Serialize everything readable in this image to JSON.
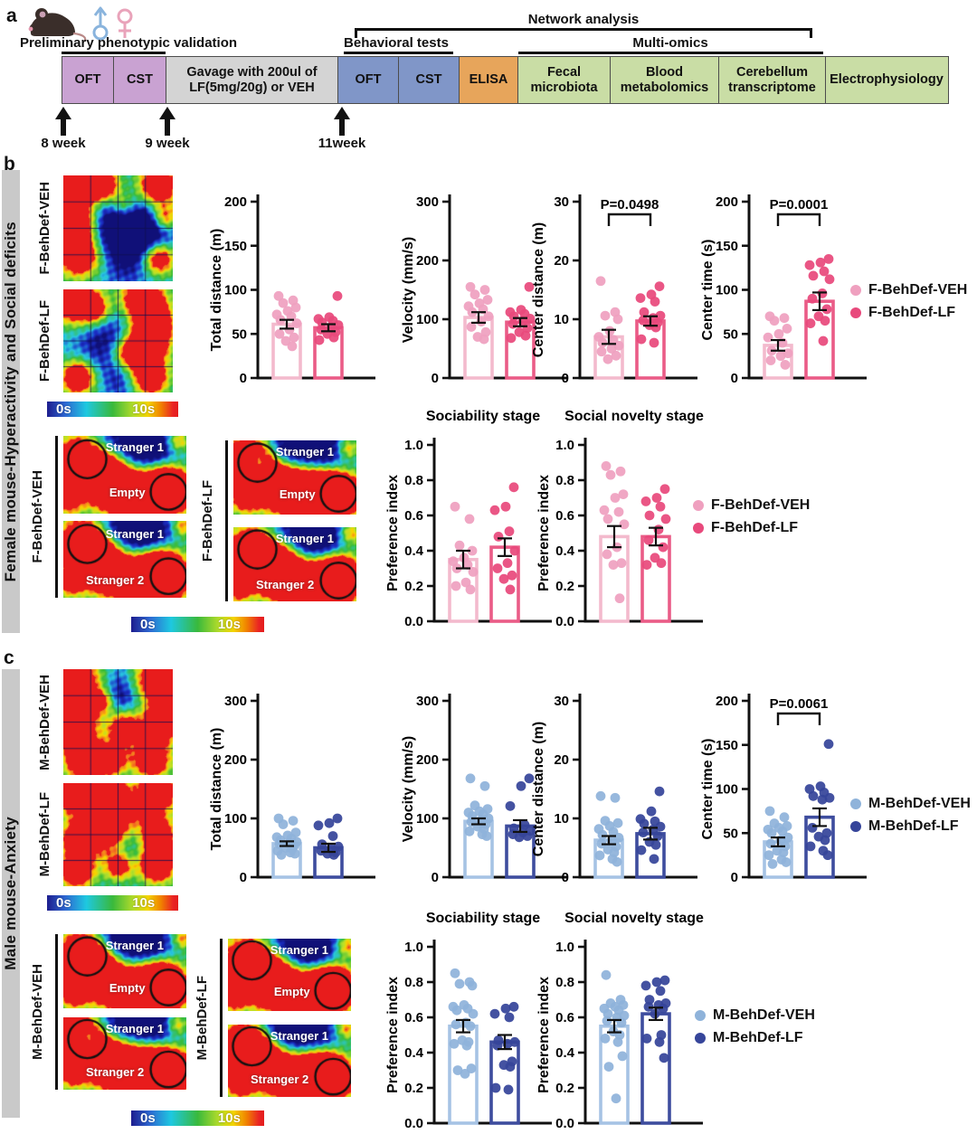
{
  "colors": {
    "f_veh": {
      "bar": "#f3bacd",
      "dot": "#efa0bf"
    },
    "f_lf": {
      "bar": "#ea5c87",
      "dot": "#e8497c"
    },
    "m_veh": {
      "bar": "#a6c3e4",
      "dot": "#8fb3da"
    },
    "m_lf": {
      "bar": "#3e4d9e",
      "dot": "#36459a"
    },
    "box_purple": "#c9a2d2",
    "box_gray": "#d4d4d4",
    "box_blue": "#8096c8",
    "box_orange": "#e7a55b",
    "box_green": "#c9dda5",
    "band_gray": "#c9c9c9"
  },
  "panel_a": {
    "label": "a",
    "male_symbol": "male",
    "female_symbol": "female",
    "brackets": {
      "preliminary": "Preliminary phenotypic validation",
      "behavioral": "Behavioral tests",
      "network": "Network analysis",
      "multiomics": "Multi-omics"
    },
    "boxes": {
      "oft1": "OFT",
      "cst1": "CST",
      "gavage": "Gavage with 200ul of LF(5mg/20g) or VEH",
      "oft2": "OFT",
      "cst2": "CST",
      "elisa": "ELISA",
      "fecal": "Fecal microbiota",
      "blood": "Blood metabolomics",
      "cereb": "Cerebellum transcriptome",
      "ephys": "Electrophysiology"
    },
    "timepoints": [
      "8 week",
      "9 week",
      "11week"
    ]
  },
  "panel_b": {
    "label": "b",
    "side_label": "Female mouse-Hyperactivity and Social deficits",
    "oft_maps": [
      {
        "label": "F-BehDef-VEH"
      },
      {
        "label": "F-BehDef-LF"
      }
    ],
    "scale": {
      "min": "0s",
      "max": "10s"
    },
    "social_groups": [
      {
        "label": "F-BehDef-VEH",
        "maps": [
          {
            "top": "Stranger 1",
            "bottom": "Empty"
          },
          {
            "top": "Stranger 1",
            "bottom": "Stranger 2"
          }
        ]
      },
      {
        "label": "F-BehDef-LF",
        "maps": [
          {
            "top": "Stranger 1",
            "bottom": "Empty"
          },
          {
            "top": "Stranger 1",
            "bottom": "Stranger 2"
          }
        ]
      }
    ],
    "legend": [
      {
        "label": "F-BehDef-VEH",
        "color": "f_veh"
      },
      {
        "label": "F-BehDef-LF",
        "color": "f_lf"
      }
    ]
  },
  "panel_c": {
    "label": "c",
    "side_label": "Male mouse-Anxiety",
    "oft_maps": [
      {
        "label": "M-BehDef-VEH"
      },
      {
        "label": "M-BehDef-LF"
      }
    ],
    "scale": {
      "min": "0s",
      "max": "10s"
    },
    "social_groups": [
      {
        "label": "M-BehDef-VEH",
        "maps": [
          {
            "top": "Stranger 1",
            "bottom": "Empty"
          },
          {
            "top": "Stranger 1",
            "bottom": "Stranger 2"
          }
        ]
      },
      {
        "label": "M-BehDef-LF",
        "maps": [
          {
            "top": "Stranger 1",
            "bottom": "Empty"
          },
          {
            "top": "Stranger 1",
            "bottom": "Stranger 2"
          }
        ]
      }
    ],
    "legend": [
      {
        "label": "M-BehDef-VEH",
        "color": "m_veh"
      },
      {
        "label": "M-BehDef-LF",
        "color": "m_lf"
      }
    ]
  },
  "chart_data": [
    {
      "id": "b_total",
      "type": "bar",
      "title": "",
      "ylabel": "Total distance (m)",
      "ylim": [
        0,
        200
      ],
      "yticks": [
        "0",
        "50",
        "100",
        "150",
        "200"
      ],
      "pvalue": null,
      "colors": [
        "f_veh",
        "f_lf"
      ],
      "series": [
        {
          "name": "F-BehDef-VEH",
          "mean": 61,
          "sem": 5,
          "points": [
            93,
            88,
            85,
            80,
            76,
            72,
            70,
            66,
            62,
            55,
            50,
            46,
            42,
            36
          ]
        },
        {
          "name": "F-BehDef-LF",
          "mean": 57,
          "sem": 4,
          "points": [
            93,
            69,
            67,
            65,
            63,
            60,
            58,
            55,
            52,
            50,
            46,
            43
          ]
        }
      ]
    },
    {
      "id": "b_vel",
      "type": "bar",
      "title": "",
      "ylabel": "Velocity (mm/s)",
      "ylim": [
        0,
        300
      ],
      "yticks": [
        "0",
        "100",
        "200",
        "300"
      ],
      "pvalue": null,
      "colors": [
        "f_veh",
        "f_lf"
      ],
      "series": [
        {
          "name": "F-BehDef-VEH",
          "mean": 103,
          "sem": 9,
          "points": [
            155,
            150,
            142,
            133,
            127,
            122,
            117,
            112,
            105,
            96,
            87,
            78,
            70,
            66
          ]
        },
        {
          "name": "F-BehDef-LF",
          "mean": 95,
          "sem": 7,
          "points": [
            155,
            116,
            112,
            109,
            105,
            101,
            97,
            92,
            85,
            78,
            72,
            68
          ]
        }
      ]
    },
    {
      "id": "b_cdist",
      "type": "bar",
      "title": "",
      "ylabel": "Center distance (m)",
      "ylim": [
        0,
        30
      ],
      "yticks": [
        "0",
        "10",
        "20",
        "30"
      ],
      "pvalue": "P=0.0498",
      "colors": [
        "f_veh",
        "f_lf"
      ],
      "series": [
        {
          "name": "F-BehDef-VEH",
          "mean": 7,
          "sem": 1.2,
          "points": [
            16.5,
            11.2,
            10.6,
            10,
            8,
            7,
            6.5,
            6,
            5.5,
            5,
            4.5,
            3.8,
            3.2
          ]
        },
        {
          "name": "F-BehDef-LF",
          "mean": 9.7,
          "sem": 0.8,
          "points": [
            15.6,
            14.2,
            13.6,
            13,
            11.2,
            10.6,
            10.2,
            9.8,
            9.4,
            9,
            8.6,
            6.6,
            6
          ]
        }
      ]
    },
    {
      "id": "b_ctime",
      "type": "bar",
      "title": "",
      "ylabel": "Center time (s)",
      "ylim": [
        0,
        200
      ],
      "yticks": [
        "0",
        "50",
        "100",
        "150",
        "200"
      ],
      "pvalue": "P=0.0001",
      "colors": [
        "f_veh",
        "f_lf"
      ],
      "series": [
        {
          "name": "F-BehDef-VEH",
          "mean": 37,
          "sem": 6,
          "points": [
            70,
            68,
            65,
            56,
            50,
            46,
            40,
            31,
            28,
            25,
            20,
            15
          ]
        },
        {
          "name": "F-BehDef-LF",
          "mean": 87,
          "sem": 10,
          "points": [
            135,
            131,
            128,
            121,
            116,
            112,
            96,
            90,
            78,
            70,
            65,
            62,
            42
          ]
        }
      ]
    },
    {
      "id": "b_soc",
      "type": "bar",
      "title": "Sociability stage",
      "ylabel": "Preference index",
      "ylim": [
        0,
        1
      ],
      "yticks": [
        "0.0",
        "0.2",
        "0.4",
        "0.6",
        "0.8",
        "1.0"
      ],
      "pvalue": null,
      "colors": [
        "f_veh",
        "f_lf"
      ],
      "series": [
        {
          "name": "F-BehDef-VEH",
          "mean": 0.35,
          "sem": 0.05,
          "points": [
            0.65,
            0.58,
            0.43,
            0.4,
            0.36,
            0.34,
            0.32,
            0.3,
            0.28,
            0.22,
            0.2,
            0.18
          ]
        },
        {
          "name": "F-BehDef-LF",
          "mean": 0.42,
          "sem": 0.05,
          "points": [
            0.76,
            0.65,
            0.63,
            0.51,
            0.48,
            0.4,
            0.33,
            0.3,
            0.26,
            0.24,
            0.18
          ]
        }
      ]
    },
    {
      "id": "b_nov",
      "type": "bar",
      "title": "Social novelty stage",
      "ylabel": "Preference index",
      "ylim": [
        0,
        1
      ],
      "yticks": [
        "0.0",
        "0.2",
        "0.4",
        "0.6",
        "0.8",
        "1.0"
      ],
      "pvalue": null,
      "colors": [
        "f_veh",
        "f_lf"
      ],
      "series": [
        {
          "name": "F-BehDef-VEH",
          "mean": 0.48,
          "sem": 0.06,
          "points": [
            0.88,
            0.85,
            0.83,
            0.72,
            0.7,
            0.63,
            0.62,
            0.58,
            0.55,
            0.42,
            0.38,
            0.33,
            0.32,
            0.13
          ]
        },
        {
          "name": "F-BehDef-LF",
          "mean": 0.48,
          "sem": 0.05,
          "points": [
            0.75,
            0.7,
            0.68,
            0.65,
            0.6,
            0.58,
            0.52,
            0.46,
            0.42,
            0.36,
            0.33,
            0.32
          ]
        }
      ]
    },
    {
      "id": "c_total",
      "type": "bar",
      "title": "",
      "ylabel": "Total distance (m)",
      "ylim": [
        0,
        300
      ],
      "yticks": [
        "0",
        "100",
        "200",
        "300"
      ],
      "pvalue": null,
      "colors": [
        "m_veh",
        "m_lf"
      ],
      "series": [
        {
          "name": "M-BehDef-VEH",
          "mean": 57,
          "sem": 4,
          "points": [
            100,
            96,
            90,
            76,
            71,
            68,
            66,
            63,
            60,
            58,
            56,
            53,
            50,
            48,
            45,
            42,
            40,
            38
          ]
        },
        {
          "name": "M-BehDef-LF",
          "mean": 50,
          "sem": 7,
          "points": [
            100,
            92,
            88,
            70,
            56,
            52,
            48,
            45,
            42,
            40,
            38
          ]
        }
      ]
    },
    {
      "id": "c_vel",
      "type": "bar",
      "title": "",
      "ylabel": "Velocity (mm/s)",
      "ylim": [
        0,
        300
      ],
      "yticks": [
        "0",
        "100",
        "200",
        "300"
      ],
      "pvalue": null,
      "colors": [
        "m_veh",
        "m_lf"
      ],
      "series": [
        {
          "name": "M-BehDef-VEH",
          "mean": 95,
          "sem": 5,
          "points": [
            168,
            155,
            122,
            116,
            112,
            110,
            107,
            104,
            100,
            97,
            94,
            90,
            86,
            82,
            78,
            73,
            70
          ]
        },
        {
          "name": "M-BehDef-LF",
          "mean": 87,
          "sem": 10,
          "points": [
            168,
            155,
            121,
            89,
            83,
            79,
            76,
            73,
            70,
            68
          ]
        }
      ]
    },
    {
      "id": "c_cdist",
      "type": "bar",
      "title": "",
      "ylabel": "Center distance (m)",
      "ylim": [
        0,
        30
      ],
      "yticks": [
        "0",
        "10",
        "20",
        "30"
      ],
      "pvalue": null,
      "colors": [
        "m_veh",
        "m_lf"
      ],
      "series": [
        {
          "name": "M-BehDef-VEH",
          "mean": 6.3,
          "sem": 0.7,
          "points": [
            13.8,
            13.5,
            9.6,
            9.2,
            8.7,
            8.2,
            7.7,
            7.2,
            6.7,
            6.2,
            5.7,
            5.2,
            4.7,
            4.2,
            3.7,
            3.1,
            2.6
          ]
        },
        {
          "name": "M-BehDef-LF",
          "mean": 7.4,
          "sem": 1.0,
          "points": [
            14.6,
            11.2,
            9.9,
            9.5,
            9.1,
            8.6,
            8.1,
            7.6,
            7,
            6,
            5.5,
            4.6,
            3.1
          ]
        }
      ]
    },
    {
      "id": "c_ctime",
      "type": "bar",
      "title": "",
      "ylabel": "Center time (s)",
      "ylim": [
        0,
        200
      ],
      "yticks": [
        "0",
        "50",
        "100",
        "150",
        "200"
      ],
      "pvalue": "P=0.0061",
      "colors": [
        "m_veh",
        "m_lf"
      ],
      "series": [
        {
          "name": "M-BehDef-VEH",
          "mean": 40,
          "sem": 5,
          "points": [
            75,
            68,
            61,
            58,
            56,
            54,
            52,
            50,
            45,
            42,
            38,
            35,
            30,
            28,
            25,
            20,
            17,
            15
          ]
        },
        {
          "name": "M-BehDef-LF",
          "mean": 68,
          "sem": 10,
          "points": [
            151,
            103,
            100,
            96,
            92,
            90,
            88,
            56,
            50,
            46,
            42,
            35,
            30,
            25
          ]
        }
      ]
    },
    {
      "id": "c_soc",
      "type": "bar",
      "title": "Sociability stage",
      "ylabel": "Preference index",
      "ylim": [
        0,
        1
      ],
      "yticks": [
        "0.0",
        "0.2",
        "0.4",
        "0.6",
        "0.8",
        "1.0"
      ],
      "pvalue": null,
      "colors": [
        "m_veh",
        "m_lf"
      ],
      "series": [
        {
          "name": "M-BehDef-VEH",
          "mean": 0.55,
          "sem": 0.035,
          "points": [
            0.85,
            0.8,
            0.79,
            0.78,
            0.67,
            0.66,
            0.65,
            0.64,
            0.62,
            0.57,
            0.56,
            0.55,
            0.47,
            0.46,
            0.45,
            0.44,
            0.31,
            0.3,
            0.28
          ]
        },
        {
          "name": "M-BehDef-LF",
          "mean": 0.46,
          "sem": 0.04,
          "points": [
            0.66,
            0.65,
            0.62,
            0.6,
            0.47,
            0.46,
            0.45,
            0.44,
            0.35,
            0.33,
            0.32,
            0.2,
            0.19
          ]
        }
      ]
    },
    {
      "id": "c_nov",
      "type": "bar",
      "title": "Social novelty stage",
      "ylabel": "Preference index",
      "ylim": [
        0,
        1
      ],
      "yticks": [
        "0.0",
        "0.2",
        "0.4",
        "0.6",
        "0.8",
        "1.0"
      ],
      "pvalue": null,
      "colors": [
        "m_veh",
        "m_lf"
      ],
      "series": [
        {
          "name": "M-BehDef-VEH",
          "mean": 0.55,
          "sem": 0.035,
          "points": [
            0.84,
            0.7,
            0.68,
            0.67,
            0.66,
            0.65,
            0.64,
            0.62,
            0.61,
            0.6,
            0.58,
            0.57,
            0.52,
            0.5,
            0.48,
            0.46,
            0.38,
            0.32,
            0.14
          ]
        },
        {
          "name": "M-BehDef-LF",
          "mean": 0.62,
          "sem": 0.035,
          "points": [
            0.81,
            0.8,
            0.78,
            0.75,
            0.7,
            0.68,
            0.67,
            0.66,
            0.65,
            0.62,
            0.5,
            0.48,
            0.46,
            0.37
          ]
        }
      ]
    }
  ]
}
